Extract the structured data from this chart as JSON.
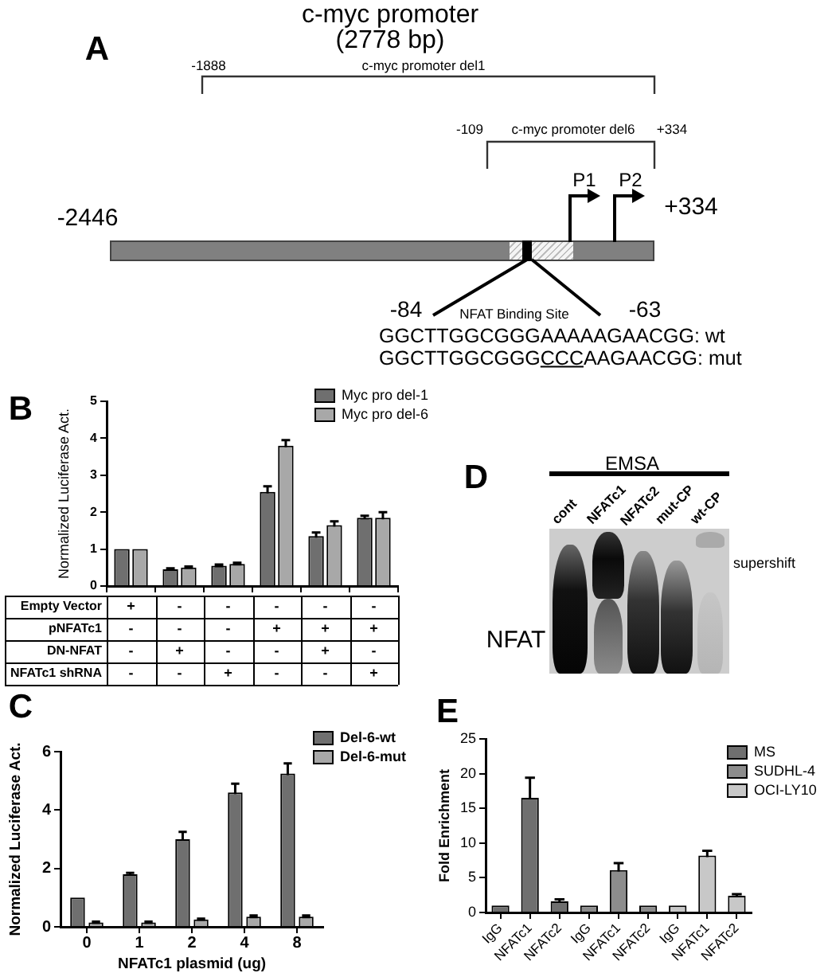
{
  "chart_data": [
    {
      "type": "other",
      "title": "c-myc promoter",
      "subtitle": "(2778 bp)",
      "annotations": [
        "A",
        "-1888",
        "c-myc promoter del1",
        "-109",
        "c-myc promoter del6",
        "+334",
        "P1",
        "P2",
        "-2446",
        "+334",
        "-84",
        "NFAT Binding Site",
        "-63",
        "GGCTTGGCGGGAAAAAGAACGG: wt",
        "GGCTTGGCGGGCCCAAGAACGG: mut"
      ]
    },
    {
      "type": "bar",
      "categories": [
        "+\n-\n-\n-",
        "-\n-\n+\n-",
        "-\n-\n-\n+",
        "-\n+\n-\n-",
        "-\n+\n+\n-",
        "-\n+\n-\n+"
      ],
      "series": [
        {
          "name": "Myc pro del-1",
          "color": "#6f6f6f",
          "values": [
            1,
            0.45,
            0.55,
            2.55,
            1.35,
            1.85
          ],
          "errors": [
            null,
            0.03,
            0.03,
            0.15,
            0.1,
            0.05
          ]
        },
        {
          "name": "Myc pro del-6",
          "color": "#a8a8a8",
          "values": [
            1,
            0.5,
            0.6,
            3.8,
            1.65,
            1.85
          ],
          "errors": [
            null,
            0.03,
            0.03,
            0.15,
            0.1,
            0.15
          ]
        }
      ],
      "ylabel": "Normalized Luciferase Act.",
      "ylim": [
        0,
        5
      ],
      "yticks": [
        0,
        1,
        2,
        3,
        4,
        5
      ],
      "legend": "top right",
      "annotations": [
        "B",
        "Empty Vector",
        "pNFATc1",
        "DN-NFAT",
        "NFATc1 shRNA"
      ]
    },
    {
      "type": "other",
      "title": "EMSA",
      "annotations": [
        "D",
        "cont",
        "NFATc1",
        "NFATc2",
        "mut-CP",
        "wt-CP",
        "supershift",
        "NFAT"
      ]
    },
    {
      "type": "bar",
      "categories": [
        "0",
        "1",
        "2",
        "4",
        "8"
      ],
      "series": [
        {
          "name": "Del-6-wt",
          "color": "#6f6f6f",
          "values": [
            1,
            1.8,
            3,
            4.6,
            5.25
          ],
          "errors": [
            null,
            0.05,
            0.25,
            0.3,
            0.35
          ]
        },
        {
          "name": "Del-6-mut",
          "color": "#a8a8a8",
          "values": [
            0.15,
            0.15,
            0.25,
            0.35,
            0.35
          ],
          "errors": [
            0.03,
            0.03,
            0.03,
            0.04,
            0.04
          ]
        }
      ],
      "xlabel": "NFATc1 plasmid (ug)",
      "ylabel": "Normalized Luciferase Act.",
      "ylim": [
        0,
        6
      ],
      "yticks": [
        0,
        2,
        4,
        6
      ],
      "legend": "top right",
      "annotations": [
        "C"
      ]
    },
    {
      "type": "bar",
      "categories": [
        "IgG",
        "NFATc1",
        "NFATc2",
        "IgG",
        "NFATc1",
        "NFATc2",
        "IgG",
        "NFATc1",
        "NFATc2"
      ],
      "series": [
        {
          "name": "MS",
          "color": "#6f6f6f",
          "values": [
            1,
            16.5,
            1.6,
            null,
            null,
            null,
            null,
            null,
            null
          ],
          "errors": [
            null,
            2.9,
            0.3,
            null,
            null,
            null,
            null,
            null,
            null
          ]
        },
        {
          "name": "SUDHL-4",
          "color": "#8c8c8c",
          "values": [
            null,
            null,
            null,
            1,
            6.1,
            1,
            null,
            null,
            null
          ],
          "errors": [
            null,
            null,
            null,
            null,
            1,
            null,
            null,
            null,
            null
          ]
        },
        {
          "name": "OCI-LY10",
          "color": "#c8c8c8",
          "values": [
            null,
            null,
            null,
            null,
            null,
            null,
            1,
            8.2,
            2.4
          ],
          "errors": [
            null,
            null,
            null,
            null,
            null,
            null,
            null,
            0.7,
            0.25
          ]
        }
      ],
      "ylabel": "Fold Enrichment",
      "ylim": [
        0,
        25
      ],
      "yticks": [
        0,
        5,
        10,
        15,
        20,
        25
      ],
      "legend": "top right",
      "annotations": [
        "E"
      ]
    }
  ]
}
